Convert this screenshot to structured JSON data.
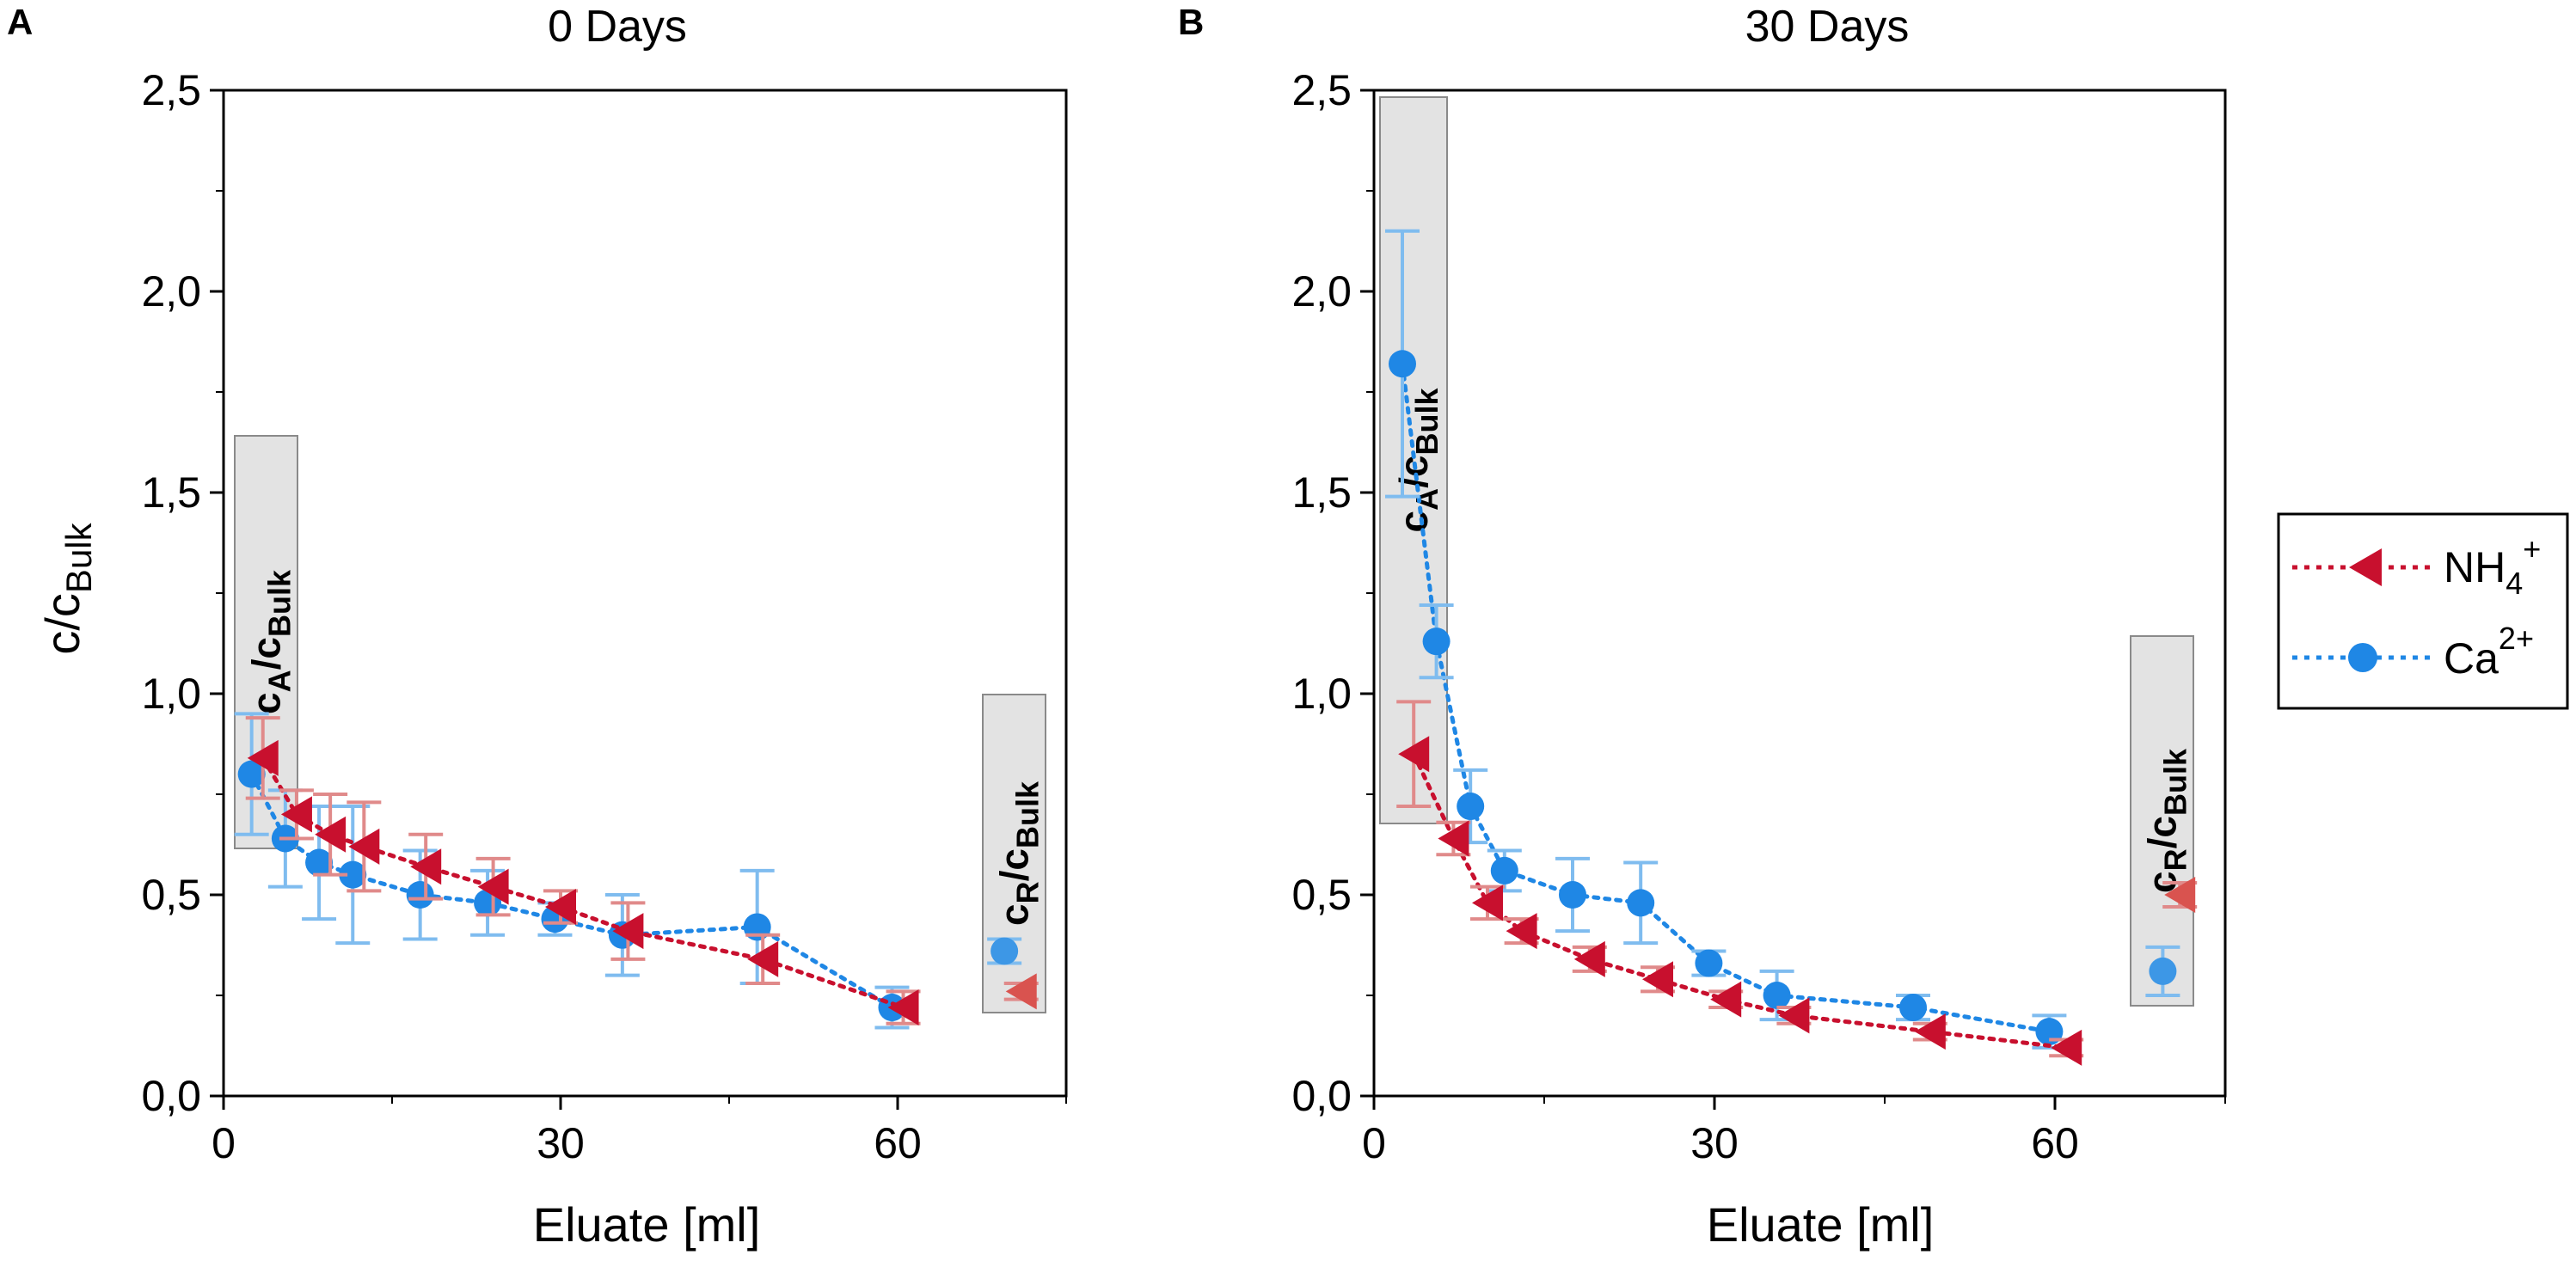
{
  "chart_data": [
    {
      "type": "scatter",
      "panel_letter": "A",
      "title": "0 Days",
      "xlabel": "Eluate [ml]",
      "ylabel": {
        "base": "c/c",
        "sub": "Bulk"
      },
      "xlim": [
        0,
        75
      ],
      "ylim": [
        0,
        2.5
      ],
      "xticks": [
        "0",
        "30",
        "60"
      ],
      "yticks": [
        "0,0",
        "0,5",
        "1,0",
        "1,5",
        "2,0",
        "2,5"
      ],
      "series": [
        {
          "name": "NH4+",
          "color": "#c8102e",
          "marker": "triangle-left",
          "x": [
            3.5,
            6.5,
            9.5,
            12.5,
            18,
            24,
            30,
            36,
            48,
            60.5
          ],
          "y": [
            0.84,
            0.7,
            0.65,
            0.62,
            0.57,
            0.52,
            0.47,
            0.41,
            0.34,
            0.22
          ],
          "err": [
            0.1,
            0.06,
            0.1,
            0.11,
            0.08,
            0.07,
            0.04,
            0.07,
            0.06,
            0.04
          ],
          "residual": {
            "x": 71,
            "y": 0.26,
            "err": 0.02
          }
        },
        {
          "name": "Ca2+",
          "color": "#1f87e5",
          "marker": "circle",
          "x": [
            2.5,
            5.5,
            8.5,
            11.5,
            17.5,
            23.5,
            29.5,
            35.5,
            47.5,
            59.5
          ],
          "y": [
            0.8,
            0.64,
            0.58,
            0.55,
            0.5,
            0.48,
            0.44,
            0.4,
            0.42,
            0.22
          ],
          "err": [
            0.15,
            0.12,
            0.14,
            0.17,
            0.11,
            0.08,
            0.04,
            0.1,
            0.14,
            0.05
          ],
          "residual": {
            "x": 69.5,
            "y": 0.36,
            "err": 0.03
          }
        }
      ],
      "annotations": [
        {
          "text": "c",
          "sub": "A",
          "sep": "/c",
          "sub2": "Bulk",
          "region": "initial"
        },
        {
          "text": "c",
          "sub": "R",
          "sep": "/c",
          "sub2": "Bulk",
          "region": "residual"
        }
      ]
    },
    {
      "type": "scatter",
      "panel_letter": "B",
      "title": "30 Days",
      "xlabel": "Eluate [ml]",
      "ylabel": {
        "base": "",
        "sub": ""
      },
      "xlim": [
        0,
        75
      ],
      "ylim": [
        0,
        2.5
      ],
      "xticks": [
        "0",
        "30",
        "60"
      ],
      "yticks": [
        "0,0",
        "0,5",
        "1,0",
        "1,5",
        "2,0",
        "2,5"
      ],
      "series": [
        {
          "name": "NH4+",
          "color": "#c8102e",
          "marker": "triangle-left",
          "x": [
            3.5,
            7,
            10,
            13,
            19,
            25,
            31,
            37,
            49,
            61
          ],
          "y": [
            0.85,
            0.64,
            0.48,
            0.41,
            0.34,
            0.29,
            0.24,
            0.2,
            0.16,
            0.12
          ],
          "err": [
            0.13,
            0.04,
            0.04,
            0.03,
            0.03,
            0.03,
            0.02,
            0.02,
            0.02,
            0.02
          ],
          "residual": {
            "x": 71,
            "y": 0.5,
            "err": 0.03
          }
        },
        {
          "name": "Ca2+",
          "color": "#1f87e5",
          "marker": "circle",
          "x": [
            2.5,
            5.5,
            8.5,
            11.5,
            17.5,
            23.5,
            29.5,
            35.5,
            47.5,
            59.5
          ],
          "y": [
            1.82,
            1.13,
            0.72,
            0.56,
            0.5,
            0.48,
            0.33,
            0.25,
            0.22,
            0.16
          ],
          "err": [
            0.33,
            0.09,
            0.09,
            0.05,
            0.09,
            0.1,
            0.03,
            0.06,
            0.03,
            0.04
          ],
          "residual": {
            "x": 69.5,
            "y": 0.31,
            "err": 0.06
          }
        }
      ],
      "annotations": [
        {
          "text": "c",
          "sub": "A",
          "sep": "/c",
          "sub2": "Bulk",
          "region": "initial"
        },
        {
          "text": "c",
          "sub": "R",
          "sep": "/c",
          "sub2": "Bulk",
          "region": "residual"
        }
      ]
    }
  ],
  "legend": {
    "position": "right",
    "items": [
      {
        "label": "NH",
        "sub": "4",
        "sup": "+",
        "color": "#c8102e",
        "marker": "triangle-left"
      },
      {
        "label": "Ca",
        "sub": "",
        "sup": "2+",
        "color": "#1f87e5",
        "marker": "circle"
      }
    ]
  }
}
